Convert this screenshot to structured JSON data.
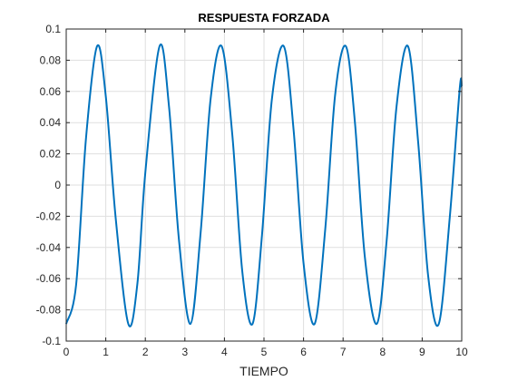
{
  "chart_data": {
    "type": "line",
    "title": "RESPUESTA FORZADA",
    "xlabel": "TIEMPO",
    "ylabel": "",
    "xlim": [
      0,
      10
    ],
    "ylim": [
      -0.1,
      0.1
    ],
    "xticks": [
      0,
      1,
      2,
      3,
      4,
      5,
      6,
      7,
      8,
      9,
      10
    ],
    "xtick_labels": [
      "0",
      "1",
      "2",
      "3",
      "4",
      "5",
      "6",
      "7",
      "8",
      "9",
      "10"
    ],
    "yticks": [
      0.1,
      0.08,
      0.06,
      0.04,
      0.02,
      0,
      -0.02,
      -0.04,
      -0.06,
      -0.08,
      -0.1
    ],
    "ytick_labels": [
      "0.1",
      "0.08",
      "0.06",
      "0.04",
      "0.02",
      "0",
      "-0.02",
      "-0.04",
      "-0.06",
      "-0.08",
      "-0.1"
    ],
    "grid": true,
    "line_color": "#0072BD",
    "series": [
      {
        "x": [
          0,
          0.25,
          0.5,
          0.78,
          1.0,
          1.25,
          1.57,
          1.8,
          2.0,
          2.36,
          2.6,
          2.85,
          3.14,
          3.4,
          3.65,
          3.93,
          4.2,
          4.45,
          4.71,
          4.95,
          5.2,
          5.5,
          5.75,
          6.0,
          6.28,
          6.55,
          6.8,
          7.07,
          7.3,
          7.55,
          7.85,
          8.1,
          8.35,
          8.64,
          8.9,
          9.15,
          9.42,
          9.7,
          9.95,
          10.0
        ],
        "y": [
          -0.089,
          -0.064,
          0.03,
          0.089,
          0.057,
          -0.021,
          -0.089,
          -0.063,
          0.008,
          0.089,
          0.05,
          -0.035,
          -0.089,
          -0.03,
          0.055,
          0.089,
          0.032,
          -0.055,
          -0.089,
          -0.032,
          0.055,
          0.089,
          0.035,
          -0.05,
          -0.089,
          -0.028,
          0.058,
          0.089,
          0.04,
          -0.046,
          -0.089,
          -0.036,
          0.05,
          0.089,
          0.027,
          -0.058,
          -0.089,
          -0.02,
          0.062,
          0.063
        ]
      }
    ]
  }
}
